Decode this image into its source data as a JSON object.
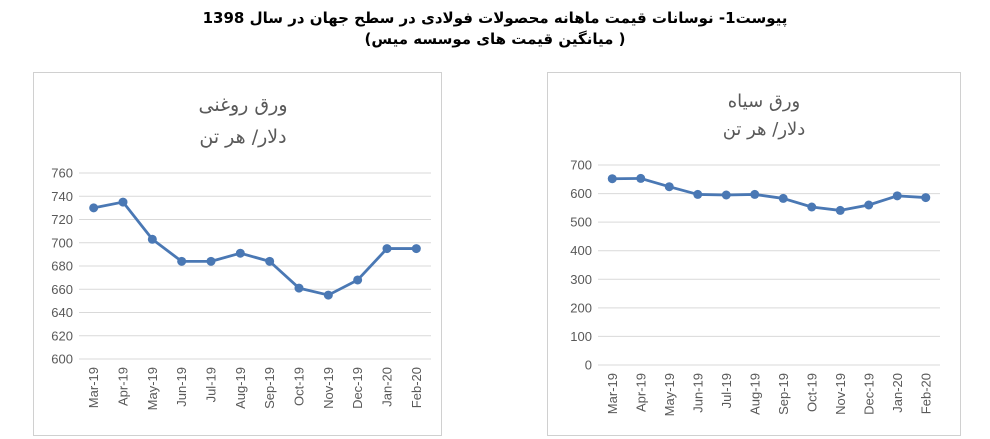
{
  "page": {
    "title_line1": "پیوست1- نوسانات قیمت ماهانه محصولات فولادی در سطح جهان در سال 1398",
    "title_line2": "( میانگین قیمت های موسسه میس)"
  },
  "colors": {
    "series": "#4a78b4",
    "grid": "#d9d9d9",
    "text": "#595959"
  },
  "chart_data": [
    {
      "type": "line",
      "title": "ورق روغنی",
      "subtitle": "دلار/ هر تن",
      "categories": [
        "Mar-19",
        "Apr-19",
        "May-19",
        "Jun-19",
        "Jul-19",
        "Aug-19",
        "Sep-19",
        "Oct-19",
        "Nov-19",
        "Dec-19",
        "Jan-20",
        "Feb-20"
      ],
      "series": [
        {
          "values": [
            730,
            735,
            703,
            684,
            684,
            691,
            684,
            661,
            655,
            668,
            695,
            695
          ]
        }
      ],
      "ylim": [
        600,
        760
      ],
      "yticks": [
        600,
        620,
        640,
        660,
        680,
        700,
        720,
        740,
        760
      ],
      "grid": true
    },
    {
      "type": "line",
      "title": "ورق سیاه",
      "subtitle": "دلار/ هر تن",
      "categories": [
        "Mar-19",
        "Apr-19",
        "May-19",
        "Jun-19",
        "Jul-19",
        "Aug-19",
        "Sep-19",
        "Oct-19",
        "Nov-19",
        "Dec-19",
        "Jan-20",
        "Feb-20"
      ],
      "series": [
        {
          "values": [
            652,
            653,
            624,
            597,
            595,
            597,
            583,
            553,
            541,
            560,
            592,
            586
          ]
        }
      ],
      "ylim": [
        0,
        700
      ],
      "yticks": [
        0,
        100,
        200,
        300,
        400,
        500,
        600,
        700
      ],
      "grid": true
    }
  ]
}
